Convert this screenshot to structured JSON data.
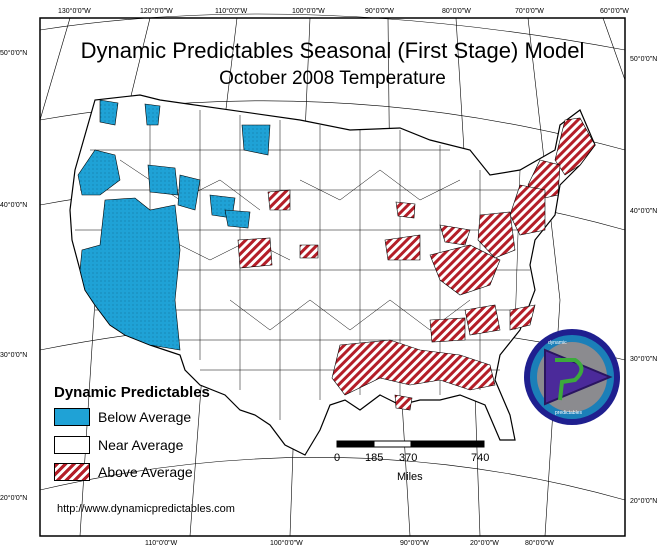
{
  "title": "Dynamic Predictables Seasonal (First Stage) Model",
  "subtitle": "October 2008 Temperature",
  "legend": {
    "title": "Dynamic Predictables",
    "items": [
      {
        "label": "Below Average",
        "color": "#1fa2d6"
      },
      {
        "label": "Near Average",
        "color": "#ffffff"
      },
      {
        "label": "Above Average",
        "color": "#b41e28"
      }
    ]
  },
  "scale": {
    "ticks": [
      "0",
      "185",
      "370",
      "740"
    ],
    "unit": "Miles"
  },
  "url": "http://www.dynamicpredictables.com",
  "graticule": {
    "top_longitudes": [
      "130°0'0\"W",
      "120°0'0\"W",
      "110°0'0\"W",
      "100°0'0\"W",
      "90°0'0\"W",
      "80°0'0\"W",
      "70°0'0\"W",
      "60°0'0\"W"
    ],
    "bottom_longitudes": [
      "110°0'0\"W",
      "100°0'0\"W",
      "90°0'0\"W",
      "20°0'0\"W",
      "80°0'0\"W"
    ],
    "left_latitudes": [
      "50°0'0\"N",
      "40°0'0\"N",
      "30°0'0\"N",
      "20°0'0\"N"
    ],
    "right_latitudes": [
      "50°0'0\"N",
      "40°0'0\"N",
      "30°0'0\"N",
      "20°0'0\"N"
    ]
  },
  "logo": {
    "top_text": "dynamic",
    "bottom_text": "predictables",
    "colors": {
      "outer": "#1f1f8f",
      "ring": "#1b7fb8",
      "inner": "#8b8b8f",
      "triangle": "#4b2a9a",
      "glyph": "#3caa3c"
    }
  }
}
